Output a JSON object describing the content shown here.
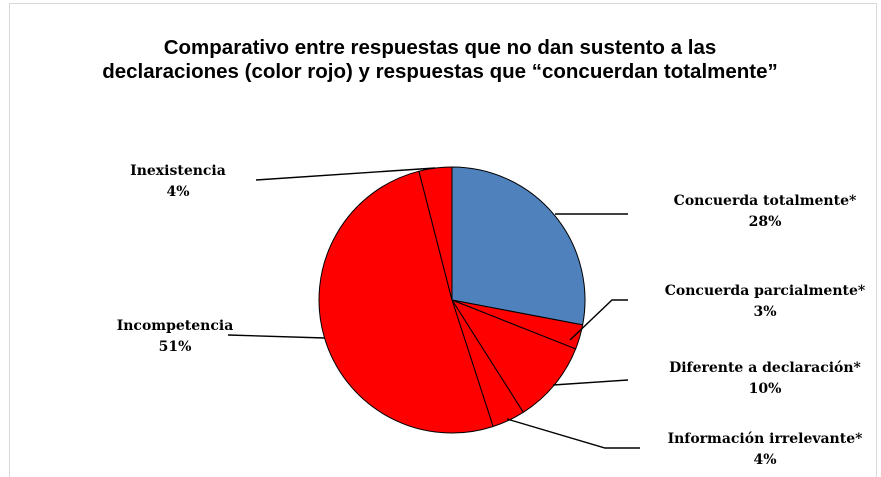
{
  "chart_data": {
    "type": "pie",
    "title": "Comparativo entre respuestas que no dan sustento a las declaraciones (color rojo) y respuestas que “concuerdan totalmente”",
    "slices": [
      {
        "label": "Concuerda totalmente*",
        "value": 28,
        "value_label": "28%",
        "color": "#4f81bd"
      },
      {
        "label": "Concuerda parcialmente*",
        "value": 3,
        "value_label": "3%",
        "color": "#ff0000"
      },
      {
        "label": "Diferente a declaración*",
        "value": 10,
        "value_label": "10%",
        "color": "#ff0000"
      },
      {
        "label": "Información irrelevante*",
        "value": 4,
        "value_label": "4%",
        "color": "#ff0000"
      },
      {
        "label": "Incompetencia",
        "value": 51,
        "value_label": "51%",
        "color": "#ff0000"
      },
      {
        "label": "Inexistencia",
        "value": 4,
        "value_label": "4%",
        "color": "#ff0000"
      }
    ]
  }
}
